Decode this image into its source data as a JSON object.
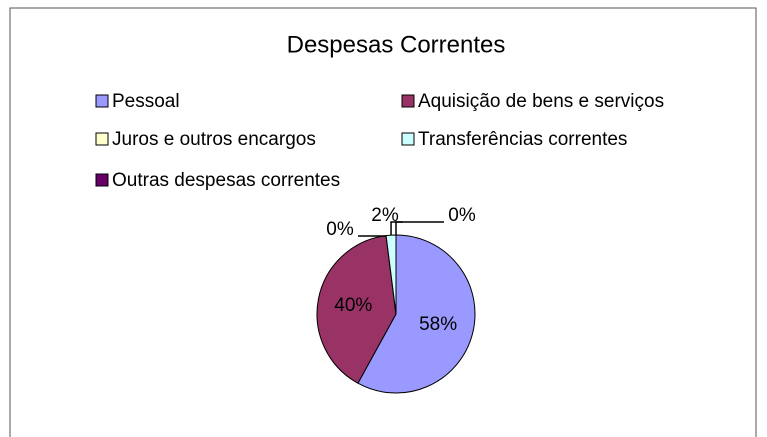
{
  "chart_data": {
    "type": "pie",
    "title": "Despesas Correntes",
    "categories": [
      "Pessoal",
      "Aquisição de bens e serviços",
      "Juros e outros encargos",
      "Transferências correntes",
      "Outras despesas correntes"
    ],
    "values": [
      58,
      40,
      0,
      2,
      0
    ],
    "value_labels": [
      "58%",
      "40%",
      "0%",
      "2%",
      "0%"
    ],
    "colors": [
      "#9999ff",
      "#993366",
      "#ffffcc",
      "#ccffff",
      "#660066"
    ],
    "legend": "top"
  }
}
